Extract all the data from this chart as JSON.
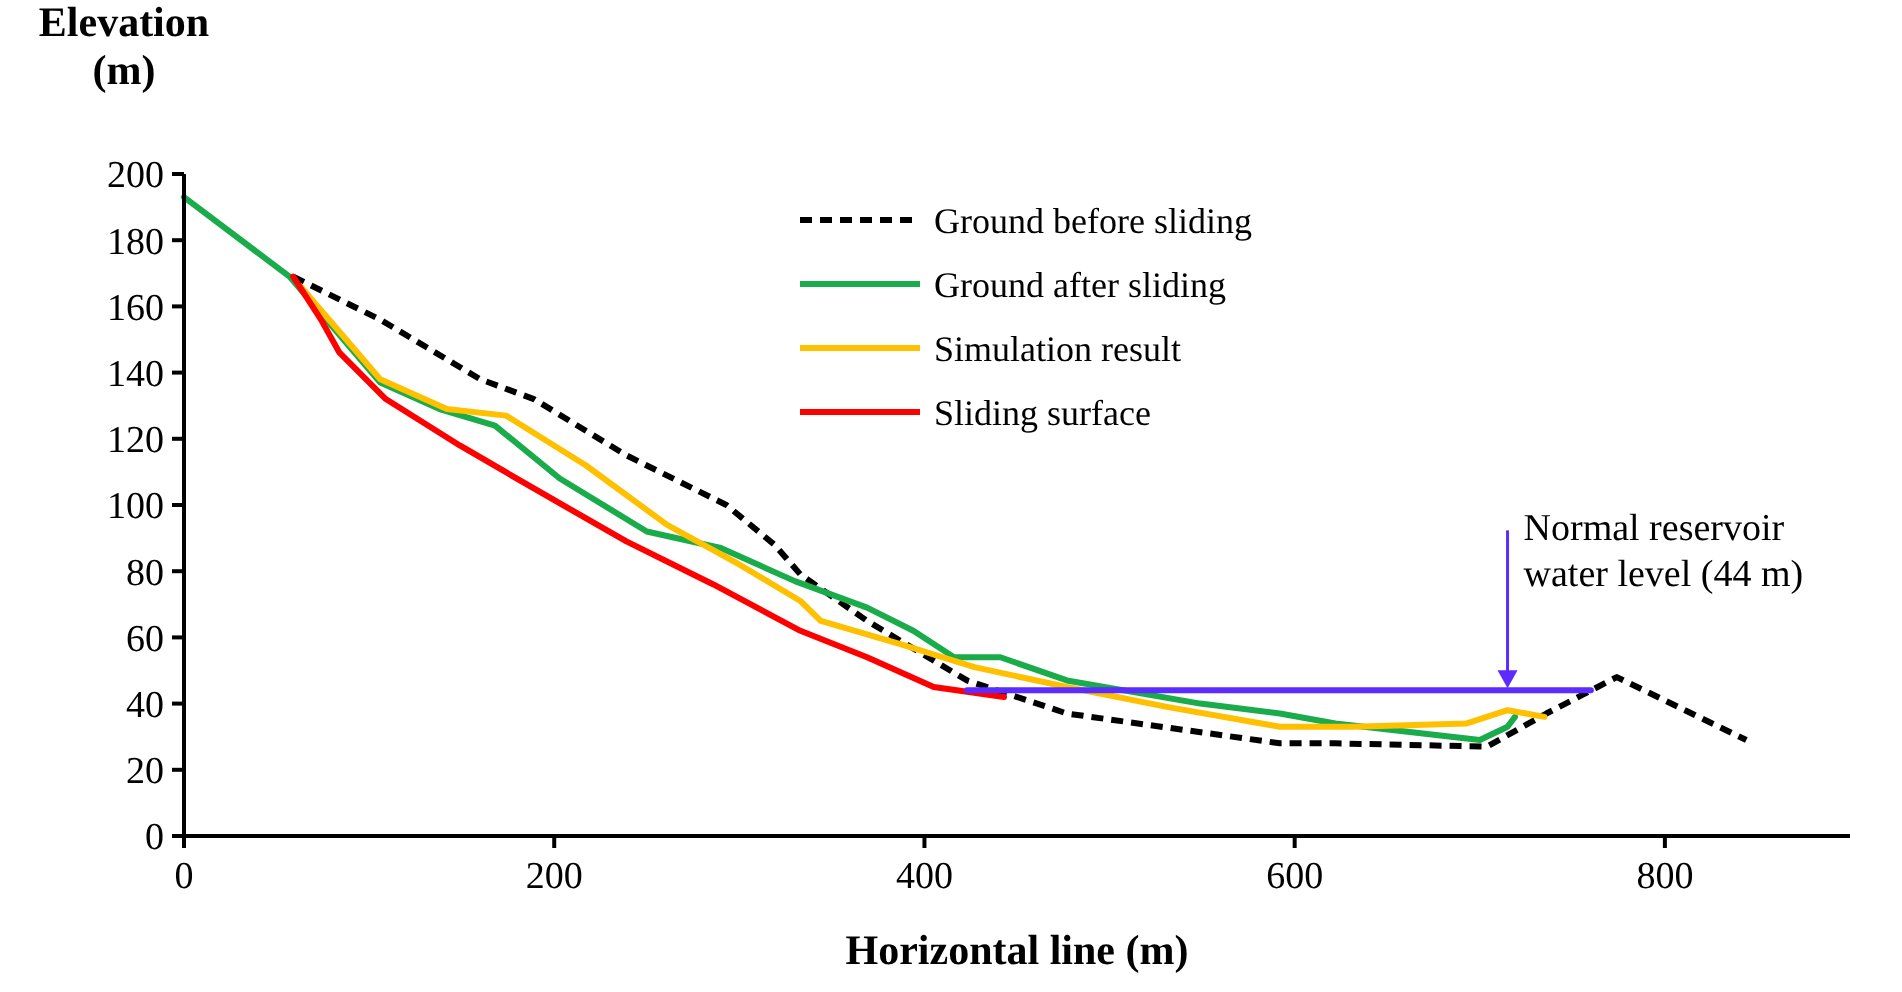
{
  "chart_data": {
    "type": "line",
    "xlabel": "Horizontal line (m)",
    "ylabel": "Elevation (m)",
    "xlim": [
      0,
      900
    ],
    "xticks": [
      0,
      200,
      400,
      600,
      800
    ],
    "ylim": [
      0,
      200
    ],
    "yticks": [
      0,
      20,
      40,
      60,
      80,
      100,
      120,
      140,
      160,
      180,
      200
    ],
    "grid": false,
    "legend": "top right",
    "marker": "none",
    "series": [
      {
        "name": "Ground before sliding",
        "color": "#000000",
        "line_style": "dashed",
        "x": [
          59,
          106,
          160,
          189,
          239,
          293,
          319,
          333,
          369,
          423,
          477,
          592,
          622,
          704,
          736,
          774,
          844
        ],
        "values": [
          169,
          156,
          138,
          132,
          115,
          100,
          88,
          79,
          65,
          47,
          37,
          28,
          28,
          27,
          37,
          48,
          29
        ]
      },
      {
        "name": "Ground after sliding",
        "color": "#1aab4b",
        "line_style": "solid",
        "x": [
          0,
          57,
          106,
          138,
          168,
          203,
          250,
          290,
          330,
          369,
          394,
          416,
          441,
          477,
          549,
          592,
          622,
          700,
          715,
          719
        ],
        "values": [
          193,
          169,
          137,
          129,
          124,
          108,
          92,
          87,
          77,
          69,
          62,
          54,
          54,
          47,
          40,
          37,
          34,
          29,
          33,
          36
        ]
      },
      {
        "name": "Simulation result",
        "color": "#ffc000",
        "line_style": "solid",
        "x": [
          63,
          106,
          142,
          174,
          217,
          261,
          297,
          333,
          344,
          387,
          427,
          477,
          531,
          592,
          632,
          693,
          715,
          735
        ],
        "values": [
          166,
          138,
          129,
          127,
          112,
          94,
          83,
          71,
          65,
          58,
          51,
          45,
          39,
          33,
          33,
          34,
          38,
          36
        ]
      },
      {
        "name": "Sliding surface",
        "color": "#ff0000",
        "line_style": "solid",
        "x": [
          59,
          74,
          84,
          109,
          149,
          189,
          239,
          286,
          333,
          369,
          405,
          443
        ],
        "values": [
          169,
          156,
          146,
          132,
          118,
          105,
          89,
          76,
          62,
          54,
          45,
          42
        ]
      },
      {
        "color": "#5b2bff",
        "line_style": "solid",
        "x": [
          423,
          760
        ],
        "values": [
          44,
          44
        ]
      }
    ],
    "annotations": [
      {
        "text": "Normal reservoir water level (44 m)",
        "x": 715,
        "y": 44
      }
    ]
  }
}
